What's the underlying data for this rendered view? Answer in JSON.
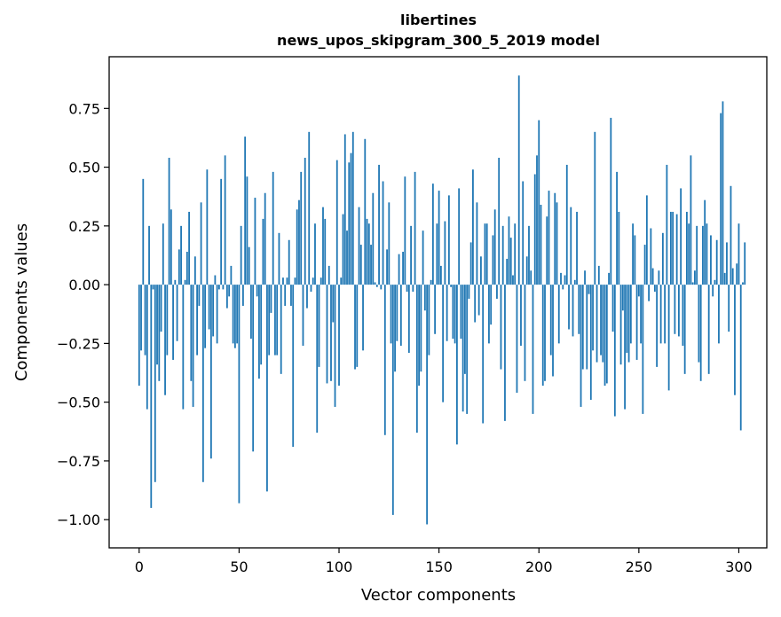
{
  "chart_data": {
    "type": "bar",
    "title": "libertines",
    "subtitle": "news_upos_skipgram_300_5_2019 model",
    "xlabel": "Vector components",
    "ylabel": "Components values",
    "xlim": [
      -15,
      314
    ],
    "ylim": [
      -1.12,
      0.97
    ],
    "xticks": [
      0,
      50,
      100,
      150,
      200,
      250,
      300
    ],
    "xtick_labels": [
      "0",
      "50",
      "100",
      "150",
      "200",
      "250",
      "300"
    ],
    "yticks": [
      -1.0,
      -0.75,
      -0.5,
      -0.25,
      0.0,
      0.25,
      0.5,
      0.75
    ],
    "ytick_labels": [
      "−1.00",
      "−0.75",
      "−0.50",
      "−0.25",
      "0.00",
      "0.25",
      "0.50",
      "0.75"
    ],
    "bar_color": "#1f77b4",
    "grid": false,
    "series": [
      {
        "name": "libertines",
        "values": [
          -0.43,
          -0.28,
          0.45,
          -0.3,
          -0.53,
          0.25,
          -0.95,
          -0.02,
          -0.84,
          -0.34,
          -0.41,
          -0.2,
          0.26,
          -0.47,
          -0.3,
          0.54,
          0.32,
          -0.32,
          0.02,
          -0.24,
          0.15,
          0.25,
          -0.53,
          0.02,
          0.14,
          0.31,
          -0.41,
          -0.52,
          0.12,
          -0.3,
          -0.09,
          0.35,
          -0.84,
          -0.27,
          0.49,
          -0.19,
          -0.74,
          -0.22,
          0.04,
          -0.25,
          -0.02,
          0.45,
          -0.02,
          0.55,
          -0.1,
          -0.05,
          0.08,
          -0.25,
          -0.27,
          -0.25,
          -0.93,
          0.25,
          -0.09,
          0.63,
          0.46,
          0.16,
          -0.23,
          -0.71,
          0.37,
          -0.05,
          -0.4,
          -0.34,
          0.28,
          0.39,
          -0.88,
          -0.3,
          -0.12,
          0.48,
          -0.3,
          -0.3,
          0.22,
          -0.38,
          0.03,
          -0.09,
          0.03,
          0.19,
          -0.09,
          -0.69,
          0.03,
          0.32,
          0.36,
          0.48,
          -0.26,
          0.54,
          -0.1,
          0.65,
          -0.03,
          0.03,
          0.26,
          -0.63,
          -0.35,
          0.03,
          0.33,
          0.28,
          -0.42,
          0.08,
          -0.41,
          -0.16,
          -0.52,
          0.53,
          -0.43,
          0.03,
          0.3,
          0.64,
          0.23,
          0.52,
          0.56,
          0.65,
          -0.36,
          -0.35,
          0.33,
          0.17,
          -0.28,
          0.62,
          0.28,
          0.26,
          0.17,
          0.39,
          0.01,
          -0.01,
          0.51,
          -0.02,
          0.44,
          -0.64,
          0.15,
          0.35,
          -0.25,
          -0.98,
          -0.37,
          -0.24,
          0.13,
          -0.26,
          0.14,
          0.46,
          -0.03,
          -0.29,
          0.25,
          -0.03,
          0.48,
          -0.63,
          -0.43,
          -0.37,
          0.23,
          -0.11,
          -1.02,
          -0.3,
          0.02,
          0.43,
          -0.21,
          0.26,
          0.4,
          0.08,
          -0.5,
          0.27,
          -0.24,
          0.38,
          -0.01,
          -0.23,
          -0.25,
          -0.68,
          0.41,
          -0.23,
          -0.54,
          -0.38,
          -0.55,
          -0.06,
          0.18,
          0.49,
          -0.16,
          0.35,
          -0.13,
          0.12,
          -0.59,
          0.26,
          0.26,
          -0.25,
          -0.17,
          0.21,
          0.32,
          -0.06,
          0.54,
          -0.36,
          0.25,
          -0.58,
          0.11,
          0.29,
          0.2,
          0.04,
          0.26,
          -0.46,
          0.89,
          -0.26,
          0.44,
          -0.41,
          0.12,
          0.25,
          0.06,
          -0.55,
          0.47,
          0.55,
          0.7,
          0.34,
          -0.43,
          -0.41,
          0.29,
          0.4,
          -0.3,
          -0.39,
          0.39,
          0.35,
          -0.25,
          0.05,
          -0.02,
          0.04,
          0.51,
          -0.19,
          0.33,
          -0.22,
          0.02,
          0.31,
          -0.21,
          -0.52,
          -0.36,
          0.06,
          -0.36,
          -0.04,
          -0.49,
          -0.28,
          0.65,
          -0.33,
          0.08,
          -0.3,
          -0.33,
          -0.43,
          -0.42,
          0.05,
          0.71,
          -0.2,
          -0.56,
          0.48,
          0.31,
          -0.34,
          -0.11,
          -0.53,
          -0.29,
          -0.33,
          -0.25,
          0.26,
          0.21,
          -0.32,
          -0.05,
          -0.25,
          -0.55,
          0.17,
          0.38,
          -0.07,
          0.24,
          0.07,
          -0.03,
          -0.35,
          0.06,
          -0.25,
          0.22,
          -0.25,
          0.51,
          -0.45,
          0.31,
          0.31,
          -0.21,
          0.3,
          -0.22,
          0.41,
          -0.26,
          -0.38,
          0.31,
          0.26,
          0.55,
          0.01,
          0.06,
          0.25,
          -0.33,
          -0.41,
          0.25,
          0.36,
          0.26,
          -0.38,
          0.21,
          -0.05,
          0.02,
          0.19,
          -0.25,
          0.73,
          0.78,
          0.05,
          0.18,
          -0.2,
          0.42,
          0.07,
          -0.47,
          0.09,
          0.26,
          -0.62,
          0.01,
          0.18
        ]
      }
    ]
  }
}
